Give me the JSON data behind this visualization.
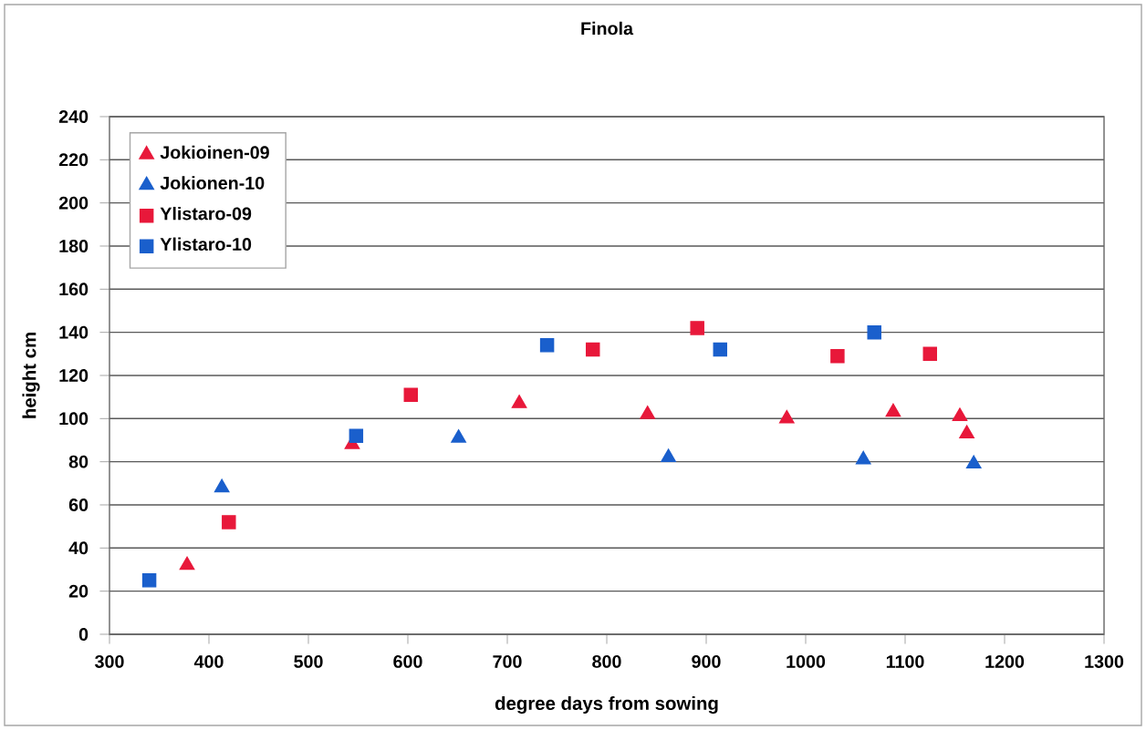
{
  "chart_data": {
    "type": "scatter",
    "title": "Finola",
    "xlabel": "degree days from sowing",
    "ylabel": "height cm",
    "xlim": [
      300,
      1300
    ],
    "xticks": [
      300,
      400,
      500,
      600,
      700,
      800,
      900,
      1000,
      1100,
      1200,
      1300
    ],
    "ylim": [
      0,
      240
    ],
    "yticks": [
      0,
      20,
      40,
      60,
      80,
      100,
      120,
      140,
      160,
      180,
      200,
      220,
      240
    ],
    "grid": "y",
    "legend": "top left",
    "series": [
      {
        "name": "Jokioinen-09",
        "color": "#e8183a",
        "marker": "triangle",
        "x": [
          378,
          544,
          712,
          841,
          981,
          1088,
          1155,
          1162
        ],
        "values": [
          32,
          88,
          107,
          102,
          100,
          103,
          101,
          93
        ]
      },
      {
        "name": "Jokionen-10",
        "color": "#1a5fcc",
        "marker": "triangle",
        "x": [
          413,
          651,
          862,
          1058,
          1169
        ],
        "values": [
          68,
          91,
          82,
          81,
          79
        ]
      },
      {
        "name": "Ylistaro-09",
        "color": "#e8183a",
        "marker": "square",
        "x": [
          420,
          603,
          786,
          891,
          1032,
          1125
        ],
        "values": [
          52,
          111,
          132,
          142,
          129,
          130
        ]
      },
      {
        "name": "Ylistaro-10",
        "color": "#1a5fcc",
        "marker": "square",
        "x": [
          340,
          548,
          740,
          914,
          1069
        ],
        "values": [
          25,
          92,
          134,
          132,
          140
        ]
      }
    ]
  }
}
